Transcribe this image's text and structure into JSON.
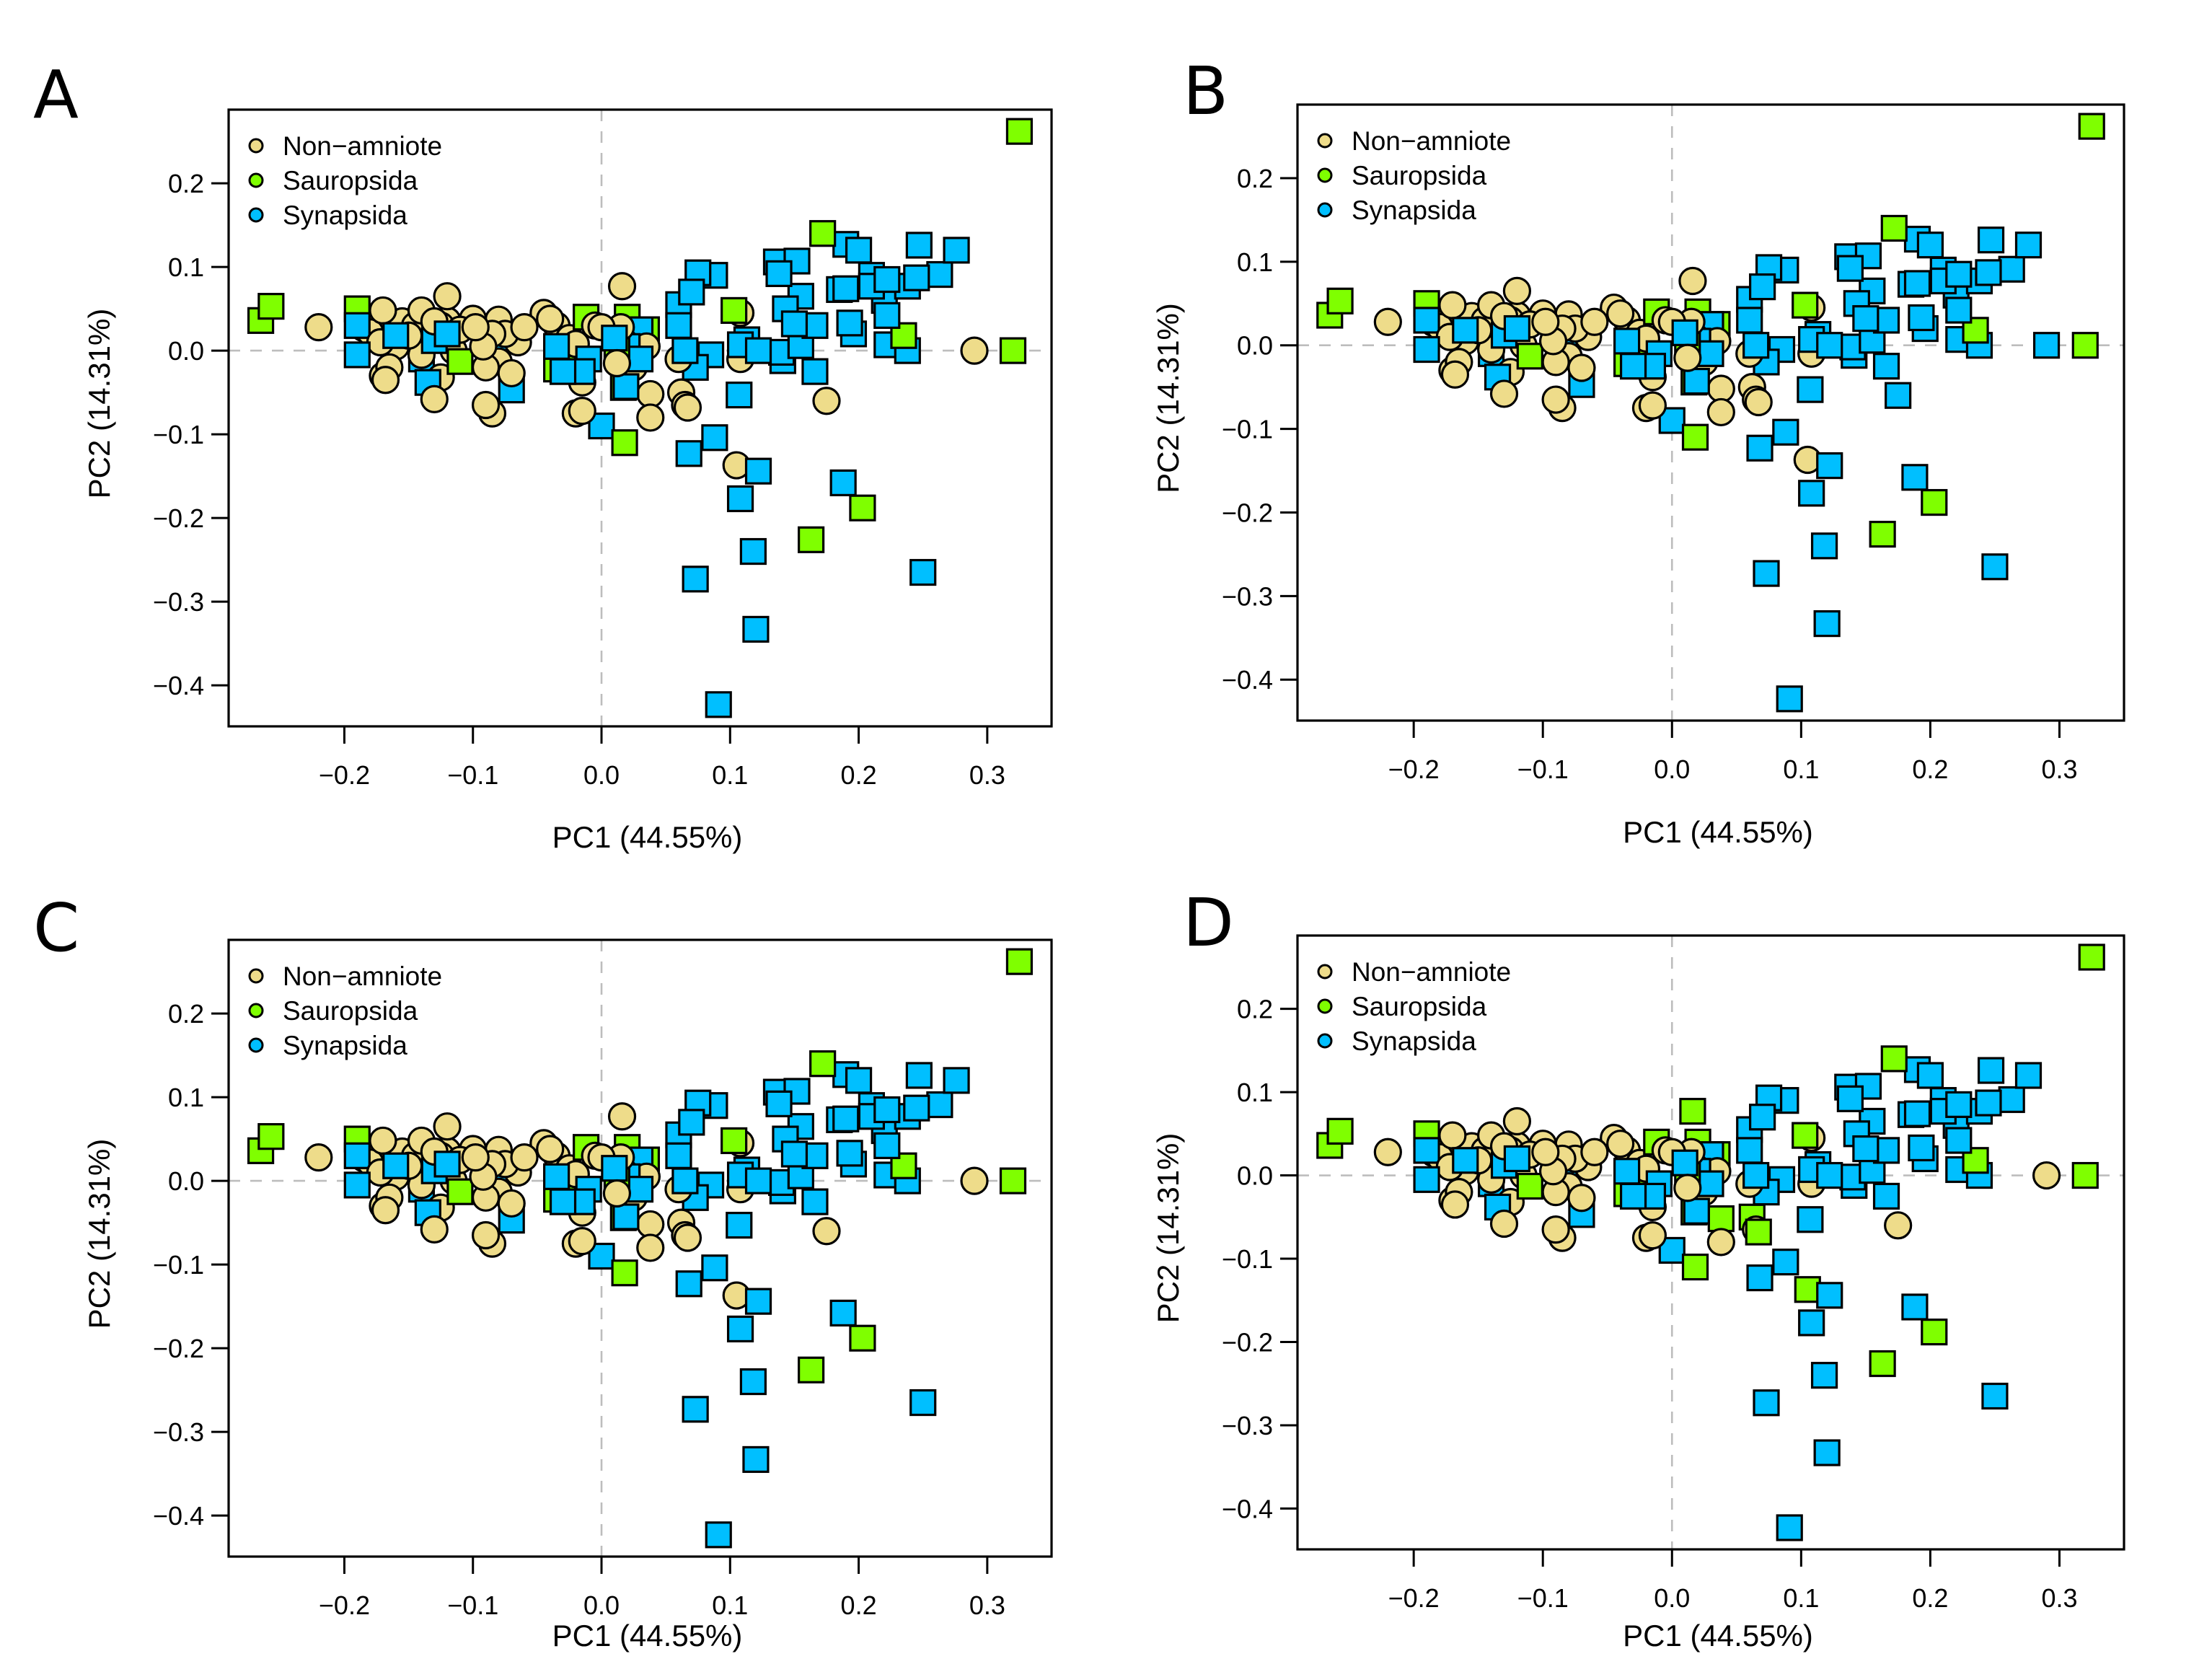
{
  "chart_data": {
    "type": "scatter",
    "title": "",
    "xlabel": "PC1 (44.55%)",
    "ylabel": "PC2 (14.31%)",
    "xlim": [
      -0.29,
      0.35
    ],
    "ylim": [
      -0.449,
      0.288
    ],
    "x_ticks": [
      -0.2,
      -0.1,
      0.0,
      0.1,
      0.2,
      0.3
    ],
    "x_tick_labels": [
      "−0.2",
      "−0.1",
      "0.0",
      "0.1",
      "0.2",
      "0.3"
    ],
    "y_ticks": [
      0.2,
      0.1,
      0.0,
      -0.1,
      -0.2,
      -0.3,
      -0.4
    ],
    "y_tick_labels": [
      "0.2",
      "0.1",
      "0.0",
      "−0.1",
      "−0.2",
      "−0.3",
      "−0.4"
    ],
    "reference_lines": {
      "x": 0.0,
      "y": 0.0,
      "style": "dashed",
      "color": "#bdbdbd"
    },
    "grid": false,
    "legend_position": "top-left",
    "groups": {
      "N": {
        "name": "Non−amniote",
        "color": "#EEDC8A",
        "marker": "circle"
      },
      "S": {
        "name": "Sauropsida",
        "color": "#7FFF00",
        "marker": "square"
      },
      "Y": {
        "name": "Synapsida",
        "color": "#00BFFF",
        "marker": "square"
      }
    },
    "legend_order": [
      "N",
      "S",
      "Y"
    ],
    "points": [
      {
        "x": 0.325,
        "y": 0.262,
        "g": "S"
      },
      {
        "x": 0.32,
        "y": 0.0,
        "g": "S"
      },
      {
        "x": -0.265,
        "y": 0.036,
        "g": "S"
      },
      {
        "x": -0.257,
        "y": 0.053,
        "g": "S"
      },
      {
        "x": -0.19,
        "y": 0.05,
        "g": "S"
      },
      {
        "x": -0.14,
        "y": 0.036,
        "g": "S"
      },
      {
        "x": -0.11,
        "y": -0.013,
        "g": "S"
      },
      {
        "x": -0.03,
        "y": 0.0,
        "g": "S"
      },
      {
        "x": -0.012,
        "y": 0.04,
        "g": "S"
      },
      {
        "x": 0.02,
        "y": 0.04,
        "g": "S"
      },
      {
        "x": 0.035,
        "y": 0.025,
        "g": "S"
      },
      {
        "x": 0.017,
        "y": -0.044,
        "g": "S"
      },
      {
        "x": 0.018,
        "y": -0.11,
        "g": "S"
      },
      {
        "x": 0.103,
        "y": 0.048,
        "g": "S"
      },
      {
        "x": 0.172,
        "y": 0.14,
        "g": "S"
      },
      {
        "x": 0.203,
        "y": -0.188,
        "g": "S"
      },
      {
        "x": 0.163,
        "y": -0.226,
        "g": "S"
      },
      {
        "x": 0.235,
        "y": 0.018,
        "g": "S"
      },
      {
        "x": -0.035,
        "y": -0.022,
        "g": "S"
      },
      {
        "x": 0.012,
        "y": 0.005,
        "g": "S"
      },
      {
        "x": -0.22,
        "y": 0.028,
        "g": "N"
      },
      {
        "x": -0.185,
        "y": 0.027,
        "g": "N"
      },
      {
        "x": -0.18,
        "y": 0.022,
        "g": "N"
      },
      {
        "x": -0.175,
        "y": 0.035,
        "g": "N"
      },
      {
        "x": -0.17,
        "y": 0.048,
        "g": "N"
      },
      {
        "x": -0.172,
        "y": 0.01,
        "g": "N"
      },
      {
        "x": -0.17,
        "y": -0.03,
        "g": "N"
      },
      {
        "x": -0.168,
        "y": -0.035,
        "g": "N"
      },
      {
        "x": -0.165,
        "y": -0.02,
        "g": "N"
      },
      {
        "x": -0.16,
        "y": 0.005,
        "g": "N"
      },
      {
        "x": -0.155,
        "y": 0.035,
        "g": "N"
      },
      {
        "x": -0.15,
        "y": 0.018,
        "g": "N"
      },
      {
        "x": -0.145,
        "y": 0.03,
        "g": "N"
      },
      {
        "x": -0.14,
        "y": 0.048,
        "g": "N"
      },
      {
        "x": -0.14,
        "y": -0.005,
        "g": "N"
      },
      {
        "x": -0.13,
        "y": 0.035,
        "g": "N"
      },
      {
        "x": -0.125,
        "y": 0.03,
        "g": "N"
      },
      {
        "x": -0.125,
        "y": -0.032,
        "g": "N"
      },
      {
        "x": -0.12,
        "y": 0.065,
        "g": "N"
      },
      {
        "x": -0.12,
        "y": 0.036,
        "g": "N"
      },
      {
        "x": -0.115,
        "y": 0.0,
        "g": "N"
      },
      {
        "x": -0.11,
        "y": 0.025,
        "g": "N"
      },
      {
        "x": -0.1,
        "y": 0.038,
        "g": "N"
      },
      {
        "x": -0.098,
        "y": 0.028,
        "g": "N"
      },
      {
        "x": -0.092,
        "y": 0.005,
        "g": "N"
      },
      {
        "x": -0.09,
        "y": -0.02,
        "g": "N"
      },
      {
        "x": -0.085,
        "y": 0.02,
        "g": "N"
      },
      {
        "x": -0.08,
        "y": -0.013,
        "g": "N"
      },
      {
        "x": -0.08,
        "y": 0.037,
        "g": "N"
      },
      {
        "x": -0.075,
        "y": 0.02,
        "g": "N"
      },
      {
        "x": -0.07,
        "y": -0.027,
        "g": "N"
      },
      {
        "x": -0.065,
        "y": 0.01,
        "g": "N"
      },
      {
        "x": -0.06,
        "y": 0.028,
        "g": "N"
      },
      {
        "x": -0.13,
        "y": -0.058,
        "g": "N"
      },
      {
        "x": -0.09,
        "y": -0.065,
        "g": "N"
      },
      {
        "x": -0.085,
        "y": -0.075,
        "g": "N"
      },
      {
        "x": -0.045,
        "y": 0.045,
        "g": "N"
      },
      {
        "x": -0.04,
        "y": 0.038,
        "g": "N"
      },
      {
        "x": -0.035,
        "y": 0.03,
        "g": "N"
      },
      {
        "x": -0.025,
        "y": 0.015,
        "g": "N"
      },
      {
        "x": -0.02,
        "y": 0.008,
        "g": "N"
      },
      {
        "x": -0.015,
        "y": -0.038,
        "g": "N"
      },
      {
        "x": -0.02,
        "y": -0.075,
        "g": "N"
      },
      {
        "x": -0.015,
        "y": -0.072,
        "g": "N"
      },
      {
        "x": -0.005,
        "y": 0.03,
        "g": "N"
      },
      {
        "x": 0.0,
        "y": 0.028,
        "g": "N"
      },
      {
        "x": 0.015,
        "y": 0.028,
        "g": "N"
      },
      {
        "x": 0.012,
        "y": -0.015,
        "g": "N"
      },
      {
        "x": 0.018,
        "y": 0.01,
        "g": "N"
      },
      {
        "x": 0.025,
        "y": -0.02,
        "g": "N"
      },
      {
        "x": 0.035,
        "y": 0.005,
        "g": "N"
      },
      {
        "x": 0.038,
        "y": -0.052,
        "g": "N"
      },
      {
        "x": 0.038,
        "y": -0.08,
        "g": "N"
      },
      {
        "x": 0.016,
        "y": 0.077,
        "g": "N"
      },
      {
        "x": 0.06,
        "y": -0.01,
        "g": "N"
      },
      {
        "x": 0.062,
        "y": -0.05,
        "g": "N"
      },
      {
        "x": 0.065,
        "y": -0.065,
        "g": "N"
      },
      {
        "x": 0.067,
        "y": -0.068,
        "g": "N"
      },
      {
        "x": 0.108,
        "y": 0.045,
        "g": "N"
      },
      {
        "x": 0.108,
        "y": -0.01,
        "g": "N"
      },
      {
        "x": 0.105,
        "y": -0.137,
        "g": "N"
      },
      {
        "x": 0.175,
        "y": -0.06,
        "g": "N"
      },
      {
        "x": 0.29,
        "y": 0.0,
        "g": "N"
      },
      {
        "x": -0.19,
        "y": 0.03,
        "g": "Y"
      },
      {
        "x": -0.19,
        "y": -0.005,
        "g": "Y"
      },
      {
        "x": -0.16,
        "y": 0.018,
        "g": "Y"
      },
      {
        "x": -0.135,
        "y": -0.038,
        "g": "Y"
      },
      {
        "x": -0.14,
        "y": -0.01,
        "g": "Y"
      },
      {
        "x": -0.13,
        "y": 0.012,
        "g": "Y"
      },
      {
        "x": -0.12,
        "y": 0.02,
        "g": "Y"
      },
      {
        "x": -0.08,
        "y": 0.015,
        "g": "Y"
      },
      {
        "x": -0.07,
        "y": -0.047,
        "g": "Y"
      },
      {
        "x": -0.035,
        "y": 0.005,
        "g": "Y"
      },
      {
        "x": -0.03,
        "y": -0.025,
        "g": "Y"
      },
      {
        "x": -0.015,
        "y": -0.025,
        "g": "Y"
      },
      {
        "x": -0.01,
        "y": -0.01,
        "g": "Y"
      },
      {
        "x": 0.01,
        "y": 0.015,
        "g": "Y"
      },
      {
        "x": 0.02,
        "y": 0.005,
        "g": "Y"
      },
      {
        "x": 0.03,
        "y": -0.01,
        "g": "Y"
      },
      {
        "x": 0.03,
        "y": 0.025,
        "g": "Y"
      },
      {
        "x": 0.019,
        "y": -0.043,
        "g": "Y"
      },
      {
        "x": 0.0,
        "y": -0.09,
        "g": "Y"
      },
      {
        "x": 0.06,
        "y": 0.055,
        "g": "Y"
      },
      {
        "x": 0.06,
        "y": 0.03,
        "g": "Y"
      },
      {
        "x": 0.065,
        "y": 0.0,
        "g": "Y"
      },
      {
        "x": 0.07,
        "y": 0.07,
        "g": "Y"
      },
      {
        "x": 0.075,
        "y": 0.093,
        "g": "Y"
      },
      {
        "x": 0.088,
        "y": 0.09,
        "g": "Y"
      },
      {
        "x": 0.073,
        "y": -0.02,
        "g": "Y"
      },
      {
        "x": 0.085,
        "y": -0.005,
        "g": "Y"
      },
      {
        "x": 0.068,
        "y": -0.123,
        "g": "Y"
      },
      {
        "x": 0.088,
        "y": -0.104,
        "g": "Y"
      },
      {
        "x": 0.108,
        "y": 0.007,
        "g": "Y"
      },
      {
        "x": 0.113,
        "y": 0.013,
        "g": "Y"
      },
      {
        "x": 0.122,
        "y": 0.0,
        "g": "Y"
      },
      {
        "x": 0.107,
        "y": -0.053,
        "g": "Y"
      },
      {
        "x": 0.108,
        "y": -0.177,
        "g": "Y"
      },
      {
        "x": 0.122,
        "y": -0.144,
        "g": "Y"
      },
      {
        "x": 0.118,
        "y": -0.24,
        "g": "Y"
      },
      {
        "x": 0.12,
        "y": -0.333,
        "g": "Y"
      },
      {
        "x": 0.091,
        "y": -0.423,
        "g": "Y"
      },
      {
        "x": 0.073,
        "y": -0.273,
        "g": "Y"
      },
      {
        "x": 0.136,
        "y": 0.106,
        "g": "Y"
      },
      {
        "x": 0.138,
        "y": 0.092,
        "g": "Y"
      },
      {
        "x": 0.152,
        "y": 0.107,
        "g": "Y"
      },
      {
        "x": 0.143,
        "y": 0.05,
        "g": "Y"
      },
      {
        "x": 0.155,
        "y": 0.065,
        "g": "Y"
      },
      {
        "x": 0.14,
        "y": -0.002,
        "g": "Y"
      },
      {
        "x": 0.141,
        "y": -0.012,
        "g": "Y"
      },
      {
        "x": 0.15,
        "y": 0.032,
        "g": "Y"
      },
      {
        "x": 0.155,
        "y": 0.006,
        "g": "Y"
      },
      {
        "x": 0.166,
        "y": 0.03,
        "g": "Y"
      },
      {
        "x": 0.166,
        "y": -0.025,
        "g": "Y"
      },
      {
        "x": 0.185,
        "y": 0.073,
        "g": "Y"
      },
      {
        "x": 0.19,
        "y": 0.074,
        "g": "Y"
      },
      {
        "x": 0.19,
        "y": 0.127,
        "g": "Y"
      },
      {
        "x": 0.2,
        "y": 0.12,
        "g": "Y"
      },
      {
        "x": 0.193,
        "y": 0.033,
        "g": "Y"
      },
      {
        "x": 0.196,
        "y": 0.02,
        "g": "Y"
      },
      {
        "x": 0.21,
        "y": 0.09,
        "g": "Y"
      },
      {
        "x": 0.21,
        "y": 0.077,
        "g": "Y"
      },
      {
        "x": 0.222,
        "y": 0.085,
        "g": "Y"
      },
      {
        "x": 0.22,
        "y": 0.06,
        "g": "Y"
      },
      {
        "x": 0.222,
        "y": 0.042,
        "g": "Y"
      },
      {
        "x": 0.222,
        "y": 0.007,
        "g": "Y"
      },
      {
        "x": 0.238,
        "y": 0.0,
        "g": "Y"
      },
      {
        "x": 0.238,
        "y": 0.077,
        "g": "Y"
      },
      {
        "x": 0.245,
        "y": 0.087,
        "g": "Y"
      },
      {
        "x": 0.247,
        "y": 0.126,
        "g": "Y"
      },
      {
        "x": 0.263,
        "y": 0.091,
        "g": "Y"
      },
      {
        "x": 0.276,
        "y": 0.12,
        "g": "Y"
      },
      {
        "x": 0.188,
        "y": -0.158,
        "g": "Y"
      },
      {
        "x": 0.25,
        "y": -0.265,
        "g": "Y"
      }
    ],
    "panels": [
      {
        "label": "A",
        "overrides": []
      },
      {
        "label": "B",
        "overrides": [
          {
            "x": 0.29,
            "y": 0.0,
            "g": "Y"
          },
          {
            "x": 0.175,
            "y": -0.06,
            "g": "Y"
          }
        ]
      },
      {
        "label": "C",
        "overrides": []
      },
      {
        "label": "D",
        "overrides": [
          {
            "x": 0.016,
            "y": 0.077,
            "g": "S"
          },
          {
            "x": 0.038,
            "y": -0.052,
            "g": "S"
          },
          {
            "x": 0.062,
            "y": -0.05,
            "g": "S"
          },
          {
            "x": 0.067,
            "y": -0.068,
            "g": "S"
          },
          {
            "x": 0.105,
            "y": -0.137,
            "g": "S"
          }
        ]
      }
    ]
  }
}
